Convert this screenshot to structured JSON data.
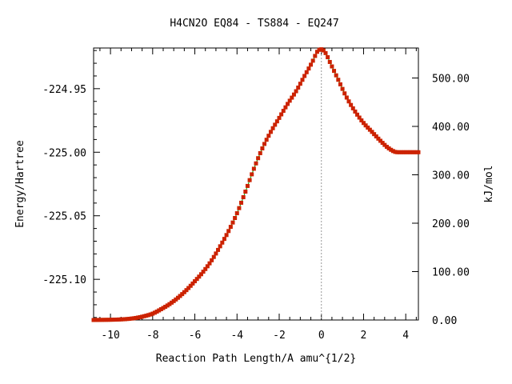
{
  "chart_data": {
    "type": "line",
    "title": "H4CN2O   EQ84 - TS884 - EQ247",
    "xlabel": "Reaction Path Length/A amu^{1/2}",
    "ylabel": "Energy/Hartree",
    "y2label": "kJ/mol",
    "xlim": [
      -10.8,
      4.6
    ],
    "ylim": [
      -225.132,
      -224.918
    ],
    "y2lim": [
      0,
      562
    ],
    "x_ticks": [
      -10,
      -8,
      -6,
      -4,
      -2,
      0,
      2,
      4
    ],
    "x_tick_labels": [
      "-10",
      "-8",
      "-6",
      "-4",
      "-2",
      "0",
      "2",
      "4"
    ],
    "y_ticks": [
      -224.95,
      -225.0,
      -225.05,
      -225.1
    ],
    "y_tick_labels": [
      "-224.95",
      "-225.00",
      "-225.05",
      "-225.10"
    ],
    "y2_ticks": [
      0,
      100,
      200,
      300,
      400,
      500
    ],
    "y2_tick_labels": [
      "0.00",
      "100.00",
      "200.00",
      "300.00",
      "400.00",
      "500.00"
    ],
    "ts_marker_x": 0,
    "grid": false,
    "line_color": "#00aa00",
    "marker_color": "#cc2200",
    "series": [
      {
        "x": [
          -10.8,
          -10.4,
          -10.0,
          -9.6,
          -9.2,
          -8.8,
          -8.4,
          -8.0,
          -7.6,
          -7.2,
          -6.8,
          -6.4,
          -6.0,
          -5.6,
          -5.2,
          -4.8,
          -4.4,
          -4.0,
          -3.6,
          -3.2,
          -2.8,
          -2.4,
          -2.0,
          -1.6,
          -1.2,
          -0.8,
          -0.4,
          -0.2,
          0.0,
          0.2,
          0.4,
          0.8,
          1.2,
          1.6,
          2.0,
          2.4,
          2.8,
          3.2,
          3.6,
          4.0,
          4.6
        ],
        "y": [
          -225.132,
          -225.1319,
          -225.1318,
          -225.1316,
          -225.1312,
          -225.1304,
          -225.129,
          -225.127,
          -225.1235,
          -225.1195,
          -225.1145,
          -225.1085,
          -225.1015,
          -225.094,
          -225.085,
          -225.074,
          -225.062,
          -225.048,
          -225.031,
          -225.013,
          -224.997,
          -224.984,
          -224.973,
          -224.962,
          -224.952,
          -224.94,
          -224.928,
          -224.921,
          -224.919,
          -224.922,
          -224.929,
          -224.943,
          -224.957,
          -224.968,
          -224.977,
          -224.984,
          -224.991,
          -224.997,
          -225.0,
          -225.0,
          -225.0
        ]
      }
    ]
  }
}
